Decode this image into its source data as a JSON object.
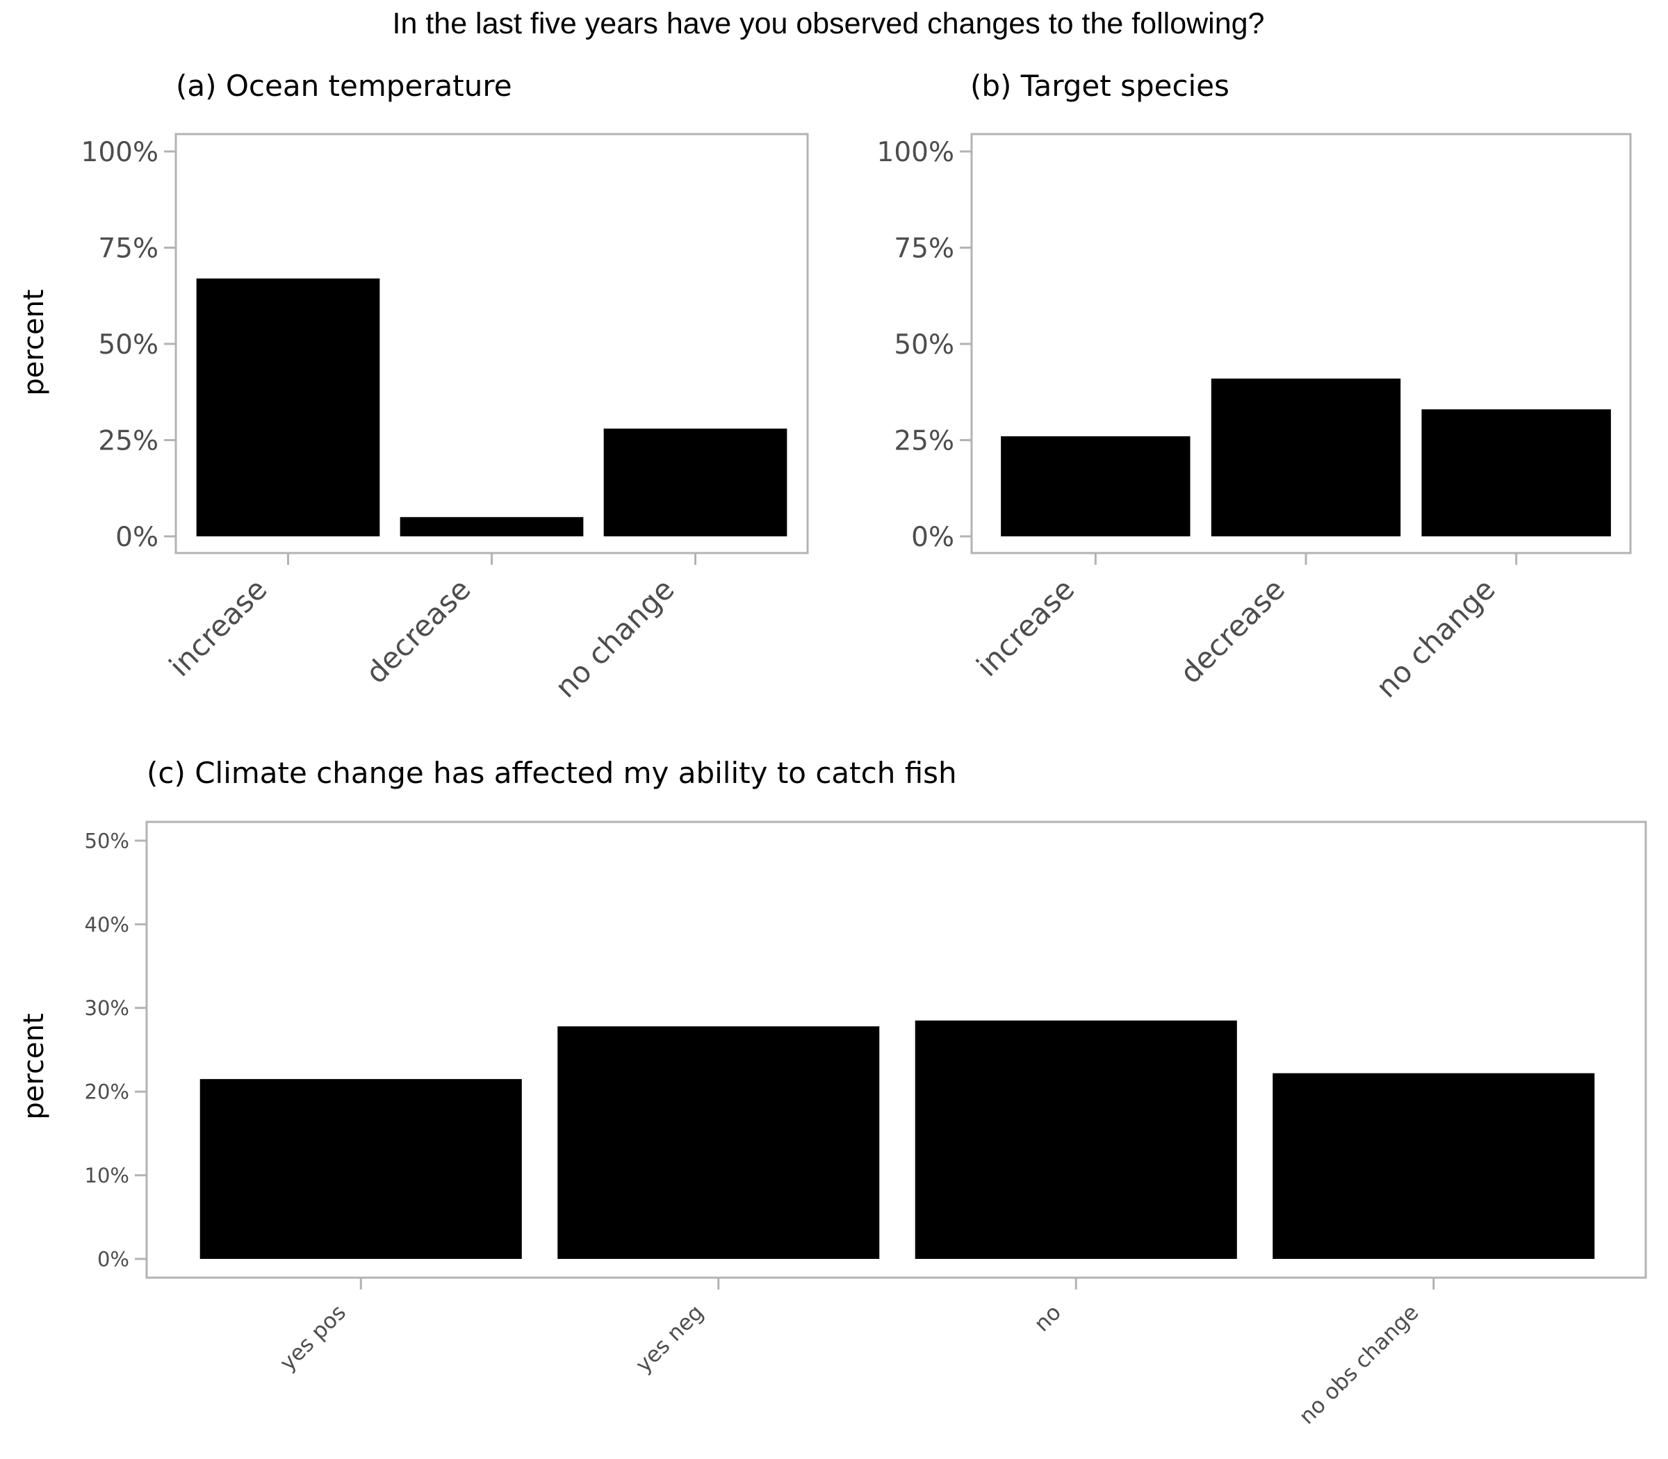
{
  "title": "In the last five years have you observed changes to the following?",
  "colors": {
    "bar": "#000000",
    "frame": "#b3b3b3",
    "tick_text": "#4d4d4d",
    "text": "#000000"
  },
  "chart_data": [
    {
      "type": "bar",
      "title": "(a) Ocean temperature",
      "ylabel": "percent",
      "xlabel": "",
      "categories": [
        "increase",
        "decrease",
        "no change"
      ],
      "values": [
        67,
        5,
        28
      ],
      "ylim": [
        0,
        100
      ],
      "yticks": [
        0,
        25,
        50,
        75,
        100
      ],
      "ytick_labels": [
        "0%",
        "25%",
        "50%",
        "75%",
        "100%"
      ],
      "grid": false
    },
    {
      "type": "bar",
      "title": "(b) Target species",
      "ylabel": "",
      "xlabel": "",
      "categories": [
        "increase",
        "decrease",
        "no change"
      ],
      "values": [
        26,
        41,
        33
      ],
      "ylim": [
        0,
        100
      ],
      "yticks": [
        0,
        25,
        50,
        75,
        100
      ],
      "ytick_labels": [
        "0%",
        "25%",
        "50%",
        "75%",
        "100%"
      ],
      "grid": false
    },
    {
      "type": "bar",
      "title": "(c) Climate change has affected my ability to catch fish",
      "ylabel": "percent",
      "xlabel": "",
      "categories": [
        "yes pos",
        "yes neg",
        "no",
        "no obs change"
      ],
      "values": [
        21.5,
        27.8,
        28.5,
        22.2
      ],
      "ylim": [
        0,
        50
      ],
      "yticks": [
        0,
        10,
        20,
        30,
        40,
        50
      ],
      "ytick_labels": [
        "0%",
        "10%",
        "20%",
        "30%",
        "40%",
        "50%"
      ],
      "grid": false
    }
  ]
}
